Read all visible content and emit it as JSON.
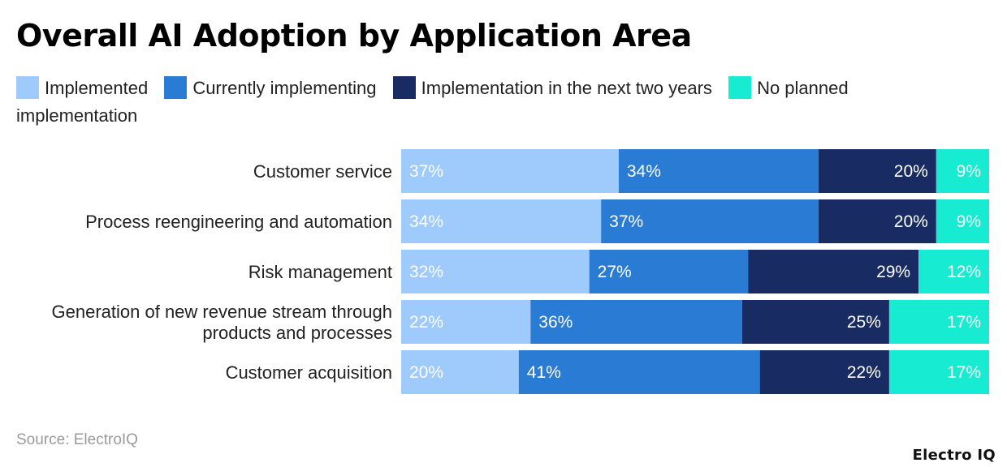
{
  "chart_data": {
    "type": "bar",
    "orientation": "horizontal",
    "stacked": true,
    "title": "Overall AI Adoption by Application Area",
    "categories": [
      [
        "Customer service"
      ],
      [
        "Process reengineering and automation"
      ],
      [
        "Risk management"
      ],
      [
        "Generation of new revenue stream through",
        "products and processes"
      ],
      [
        "Customer acquisition"
      ]
    ],
    "series": [
      {
        "name": "Implemented",
        "color": "#9ecbfb",
        "values": [
          37,
          34,
          32,
          22,
          20
        ]
      },
      {
        "name": "Currently implementing",
        "color": "#2a7bd3",
        "values": [
          34,
          37,
          27,
          36,
          41
        ]
      },
      {
        "name": "Implementation in the next two years",
        "color": "#182c63",
        "values": [
          20,
          20,
          29,
          25,
          22
        ]
      },
      {
        "name": "No planned implementation",
        "color": "#17ecd3",
        "values": [
          9,
          9,
          12,
          17,
          17
        ]
      }
    ],
    "value_suffix": "%",
    "legend_position": "top",
    "grid": false
  },
  "source": "Source: ElectroIQ",
  "brand": "Electro IQ"
}
